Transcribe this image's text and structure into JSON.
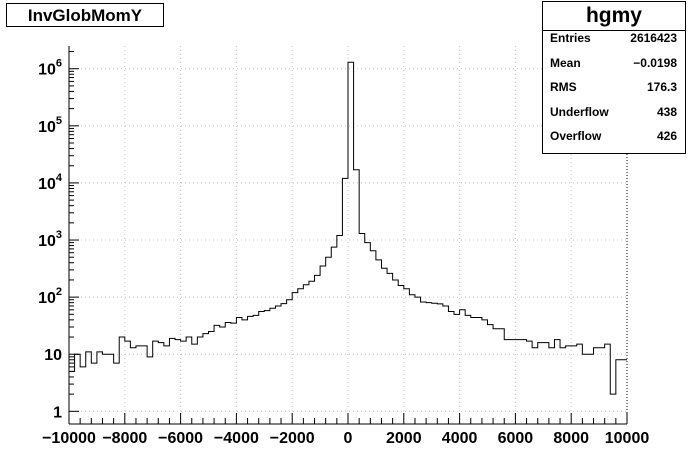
{
  "title_box": "InvGlobMomY",
  "stats": {
    "name": "hgmy",
    "rows": [
      {
        "label": "Entries",
        "value": "2616423"
      },
      {
        "label": "Mean",
        "value": "−0.0198"
      },
      {
        "label": "RMS",
        "value": "176.3"
      },
      {
        "label": "Underflow",
        "value": "438"
      },
      {
        "label": "Overflow",
        "value": "426"
      }
    ]
  },
  "chart_data": {
    "type": "histogram",
    "title": "InvGlobMomY",
    "xlabel": "",
    "ylabel": "",
    "xlim": [
      -10000,
      10000
    ],
    "ylog": true,
    "ylim": [
      0.6,
      2500000
    ],
    "grid": true,
    "bin_width": 200,
    "x_tick_labels": [
      "−10000",
      "−8000",
      "−6000",
      "−4000",
      "−2000",
      "0",
      "2000",
      "4000",
      "6000",
      "8000",
      "10000"
    ],
    "y_tick_labels": [
      "1",
      "10",
      "10^2",
      "10^3",
      "10^4",
      "10^5",
      "10^6"
    ],
    "bin_low_edges": [
      -10000,
      -9800,
      -9600,
      -9400,
      -9200,
      -9000,
      -8800,
      -8600,
      -8400,
      -8200,
      -8000,
      -7800,
      -7600,
      -7400,
      -7200,
      -7000,
      -6800,
      -6600,
      -6400,
      -6200,
      -6000,
      -5800,
      -5600,
      -5400,
      -5200,
      -5000,
      -4800,
      -4600,
      -4400,
      -4200,
      -4000,
      -3800,
      -3600,
      -3400,
      -3200,
      -3000,
      -2800,
      -2600,
      -2400,
      -2200,
      -2000,
      -1800,
      -1600,
      -1400,
      -1200,
      -1000,
      -800,
      -600,
      -400,
      -200,
      0,
      200,
      400,
      600,
      800,
      1000,
      1200,
      1400,
      1600,
      1800,
      2000,
      2200,
      2400,
      2600,
      2800,
      3000,
      3200,
      3400,
      3600,
      3800,
      4000,
      4200,
      4400,
      4600,
      4800,
      5000,
      5200,
      5400,
      5600,
      5800,
      6000,
      6200,
      6400,
      6600,
      6800,
      7000,
      7200,
      7400,
      7600,
      7800,
      8000,
      8200,
      8400,
      8600,
      8800,
      9000,
      9200,
      9400,
      9600,
      9800
    ],
    "values": [
      5,
      10,
      6,
      11,
      7,
      11,
      10,
      10,
      7,
      20,
      17,
      13,
      14,
      14,
      9,
      17,
      16,
      14,
      19,
      18,
      17,
      20,
      15,
      20,
      23,
      25,
      32,
      30,
      36,
      35,
      44,
      40,
      46,
      48,
      56,
      58,
      64,
      70,
      77,
      90,
      120,
      140,
      165,
      190,
      240,
      350,
      500,
      750,
      1200,
      12000,
      1300000,
      17000,
      1300,
      900,
      650,
      450,
      320,
      260,
      200,
      160,
      140,
      110,
      100,
      82,
      80,
      78,
      76,
      70,
      56,
      50,
      60,
      48,
      44,
      44,
      40,
      33,
      28,
      28,
      18,
      18,
      18,
      18,
      17,
      13,
      16,
      16,
      13,
      18,
      13,
      14,
      14,
      15,
      10,
      10,
      13,
      13,
      15,
      2,
      8,
      8
    ]
  }
}
